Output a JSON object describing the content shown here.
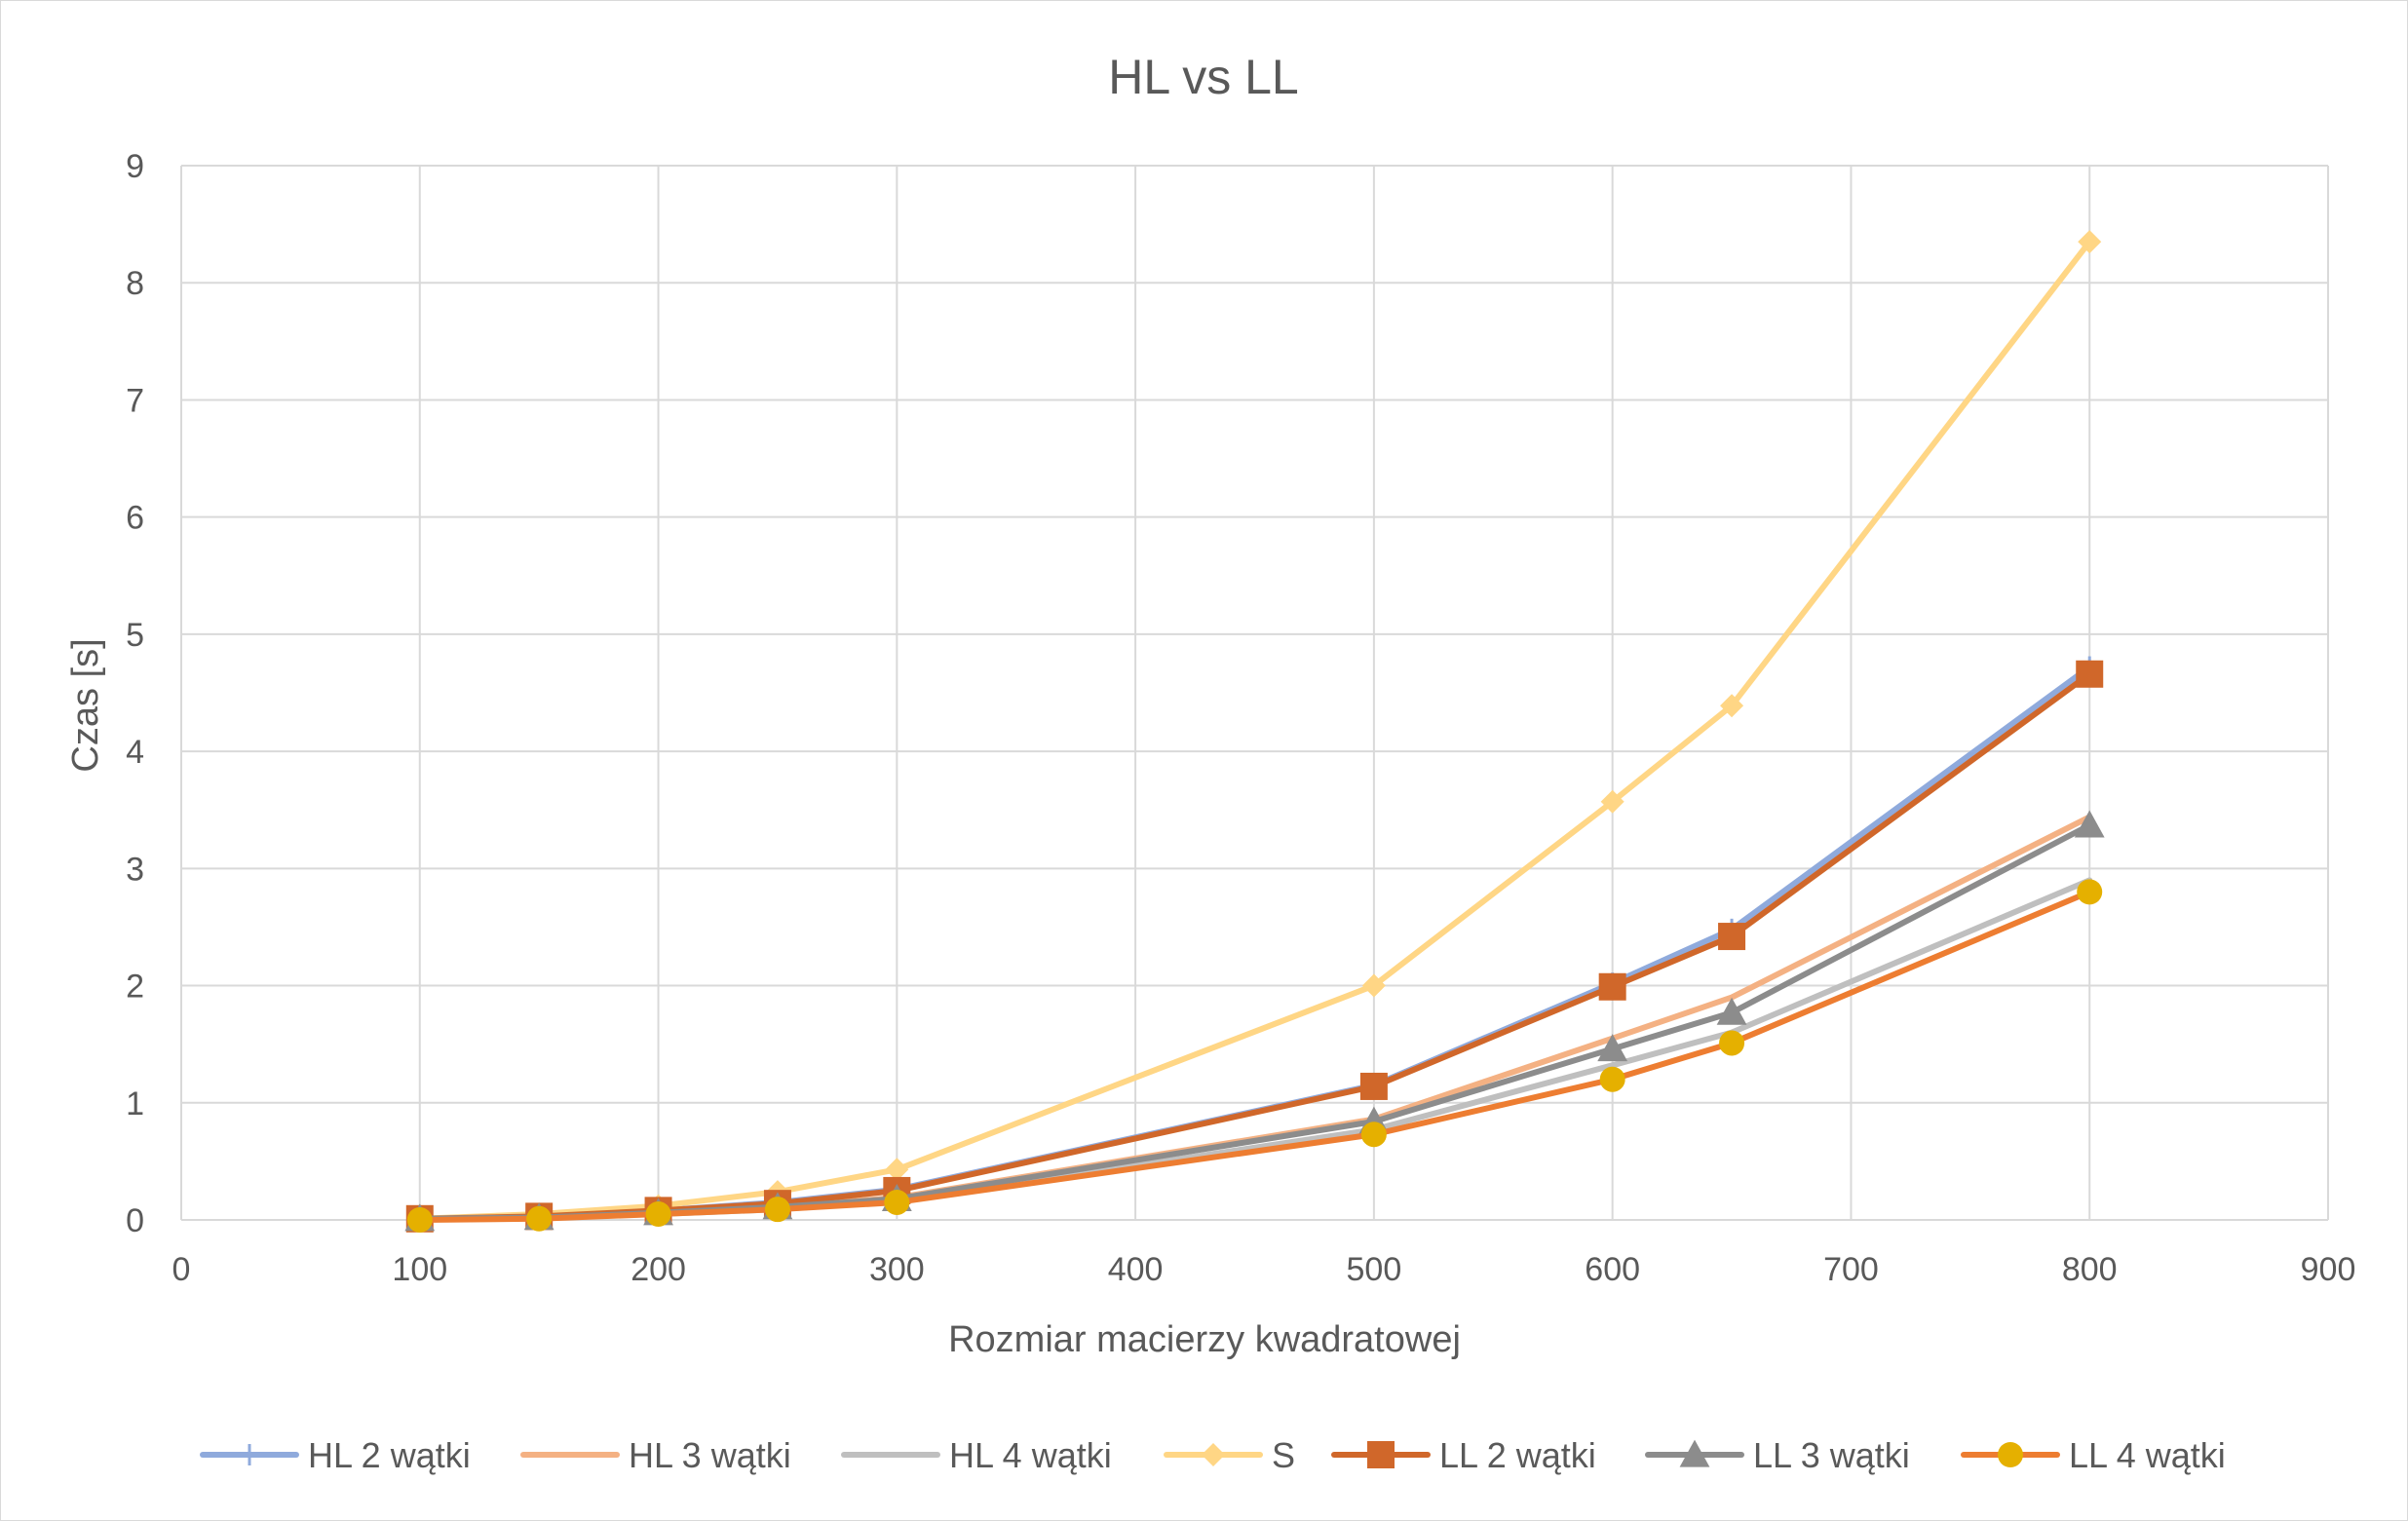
{
  "chart_data": {
    "type": "line",
    "title": "HL vs LL",
    "xlabel": "Rozmiar macierzy kwadratowej",
    "ylabel": "Czas [s]",
    "xlim": [
      0,
      900
    ],
    "ylim": [
      0,
      9
    ],
    "xticks": [
      0,
      100,
      200,
      300,
      400,
      500,
      600,
      700,
      800,
      900
    ],
    "yticks": [
      0,
      1,
      2,
      3,
      4,
      5,
      6,
      7,
      8,
      9
    ],
    "grid": true,
    "legend_position": "bottom",
    "x": [
      100,
      150,
      200,
      250,
      300,
      500,
      600,
      650,
      800
    ],
    "series": [
      {
        "name": "HL 2 wątki",
        "color": "#8faadc",
        "marker": "plus",
        "values": [
          0.01,
          0.03,
          0.08,
          0.15,
          0.26,
          1.15,
          2.02,
          2.48,
          4.72
        ]
      },
      {
        "name": "HL 3 wątki",
        "color": "#f4b183",
        "marker": "none",
        "values": [
          0.01,
          0.02,
          0.06,
          0.11,
          0.19,
          0.86,
          1.55,
          1.9,
          3.44
        ]
      },
      {
        "name": "HL 4 wątki",
        "color": "#bfbfbf",
        "marker": "none",
        "values": [
          0.01,
          0.02,
          0.05,
          0.09,
          0.16,
          0.77,
          1.32,
          1.6,
          2.9
        ]
      },
      {
        "name": "S",
        "color": "#ffd685",
        "marker": "diamond",
        "values": [
          0.01,
          0.05,
          0.12,
          0.24,
          0.43,
          2.0,
          3.57,
          4.39,
          8.35
        ]
      },
      {
        "name": "LL 2 wątki",
        "color": "#d0672a",
        "marker": "square",
        "values": [
          0.01,
          0.03,
          0.08,
          0.14,
          0.25,
          1.14,
          1.99,
          2.42,
          4.66
        ]
      },
      {
        "name": "LL 3 wątki",
        "color": "#8c8c8c",
        "marker": "triangle",
        "values": [
          0.01,
          0.02,
          0.06,
          0.11,
          0.18,
          0.84,
          1.46,
          1.77,
          3.37
        ]
      },
      {
        "name": "LL 4 wątki",
        "color": "#ed7d31",
        "markerColor": "#e5b000",
        "marker": "circle",
        "values": [
          0.0,
          0.01,
          0.05,
          0.09,
          0.15,
          0.73,
          1.2,
          1.51,
          2.8
        ]
      }
    ]
  }
}
